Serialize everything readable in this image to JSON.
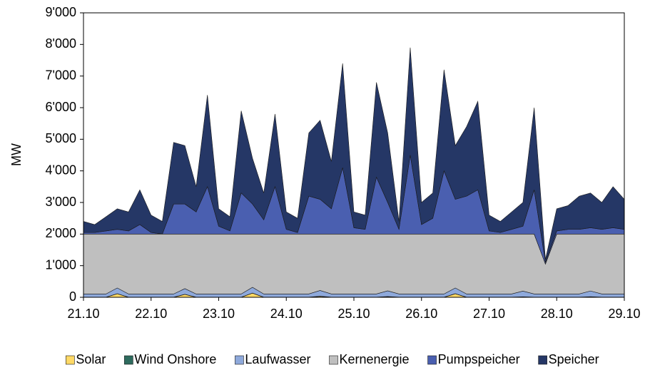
{
  "chart_data": {
    "type": "stacked-area",
    "y_label": "MW",
    "x": [
      0,
      4,
      8,
      12,
      16,
      20,
      24,
      28,
      32,
      36,
      40,
      44,
      48,
      52,
      56,
      60,
      64,
      68,
      72,
      76,
      80,
      84,
      88,
      92,
      96,
      100,
      104,
      108,
      112,
      116,
      120,
      124,
      128,
      132,
      136,
      140,
      144,
      148,
      152,
      156,
      160,
      164,
      168,
      172,
      176,
      180,
      184,
      188,
      192
    ],
    "xlim": [
      0,
      192
    ],
    "xticks": [
      {
        "value": 0,
        "label": "21.10"
      },
      {
        "value": 24,
        "label": "22.10"
      },
      {
        "value": 48,
        "label": "23.10"
      },
      {
        "value": 72,
        "label": "24.10"
      },
      {
        "value": 96,
        "label": "25.10"
      },
      {
        "value": 120,
        "label": "26.10"
      },
      {
        "value": 144,
        "label": "27.10"
      },
      {
        "value": 168,
        "label": "28.10"
      },
      {
        "value": 192,
        "label": "29.10"
      }
    ],
    "ylim": [
      0,
      9000
    ],
    "yticks": [
      0,
      {
        "value": 1000,
        "label": "1'000"
      },
      {
        "value": 2000,
        "label": "2'000"
      },
      {
        "value": 3000,
        "label": "3'000"
      },
      {
        "value": 4000,
        "label": "4'000"
      },
      {
        "value": 5000,
        "label": "5'000"
      },
      {
        "value": 6000,
        "label": "6'000"
      },
      {
        "value": 7000,
        "label": "7'000"
      },
      {
        "value": 8000,
        "label": "8'000"
      },
      {
        "value": 9000,
        "label": "9'000"
      }
    ],
    "grid": false,
    "legend": "bottom",
    "series": [
      {
        "name": "Solar",
        "color": "#ffd966",
        "values": [
          0,
          0,
          0,
          110,
          0,
          0,
          0,
          0,
          0,
          90,
          0,
          0,
          0,
          0,
          0,
          130,
          0,
          0,
          0,
          0,
          0,
          30,
          0,
          0,
          0,
          0,
          0,
          20,
          0,
          0,
          0,
          0,
          0,
          110,
          0,
          0,
          0,
          0,
          0,
          10,
          0,
          0,
          0,
          0,
          0,
          15,
          0,
          0,
          0
        ]
      },
      {
        "name": "Wind Onshore",
        "color": "#2e6b5e",
        "values": [
          5,
          5,
          5,
          5,
          5,
          5,
          5,
          5,
          5,
          5,
          5,
          5,
          5,
          5,
          5,
          5,
          5,
          5,
          5,
          5,
          5,
          5,
          5,
          5,
          5,
          5,
          5,
          5,
          5,
          5,
          5,
          5,
          5,
          5,
          5,
          5,
          5,
          5,
          5,
          5,
          5,
          5,
          5,
          5,
          5,
          5,
          5,
          5,
          5
        ]
      },
      {
        "name": "Laufwasser",
        "color": "#8ea9db",
        "values": [
          100,
          100,
          100,
          180,
          100,
          100,
          100,
          100,
          100,
          180,
          100,
          100,
          100,
          100,
          100,
          180,
          100,
          100,
          100,
          100,
          100,
          180,
          100,
          100,
          100,
          100,
          100,
          180,
          100,
          100,
          100,
          100,
          100,
          180,
          100,
          100,
          100,
          100,
          100,
          180,
          100,
          100,
          100,
          100,
          100,
          180,
          100,
          100,
          100
        ]
      },
      {
        "name": "Kernenergie",
        "color": "#bfbfbf",
        "values": [
          1895,
          1895,
          1895,
          1705,
          1895,
          1895,
          1895,
          1895,
          1895,
          1725,
          1895,
          1895,
          1895,
          1895,
          1895,
          1685,
          1895,
          1895,
          1895,
          1895,
          1895,
          1785,
          1895,
          1895,
          1895,
          1895,
          1895,
          1795,
          1895,
          1895,
          1895,
          1895,
          1895,
          1705,
          1895,
          1895,
          1895,
          1895,
          1895,
          1805,
          1895,
          945,
          1895,
          1895,
          1895,
          1800,
          1895,
          1895,
          1895
        ]
      },
      {
        "name": "Pumpspeicher",
        "color": "#4a5fb0",
        "values": [
          50,
          50,
          100,
          150,
          100,
          300,
          50,
          0,
          950,
          950,
          700,
          1500,
          250,
          100,
          1300,
          950,
          450,
          1500,
          150,
          50,
          1200,
          1100,
          800,
          2100,
          200,
          150,
          1800,
          1000,
          150,
          2500,
          300,
          500,
          2000,
          1100,
          1200,
          1400,
          100,
          50,
          150,
          250,
          1400,
          50,
          100,
          150,
          150,
          200,
          150,
          200,
          150
        ]
      },
      {
        "name": "Speicher",
        "color": "#253766",
        "values": [
          350,
          250,
          450,
          650,
          600,
          1100,
          550,
          400,
          1950,
          1850,
          800,
          2900,
          550,
          450,
          2600,
          1450,
          850,
          2300,
          550,
          450,
          2000,
          2500,
          1500,
          3300,
          500,
          450,
          3000,
          2200,
          250,
          3400,
          700,
          800,
          3200,
          1700,
          2200,
          2800,
          500,
          350,
          550,
          750,
          2600,
          100,
          700,
          750,
          1050,
          1100,
          850,
          1300,
          950
        ]
      }
    ]
  }
}
